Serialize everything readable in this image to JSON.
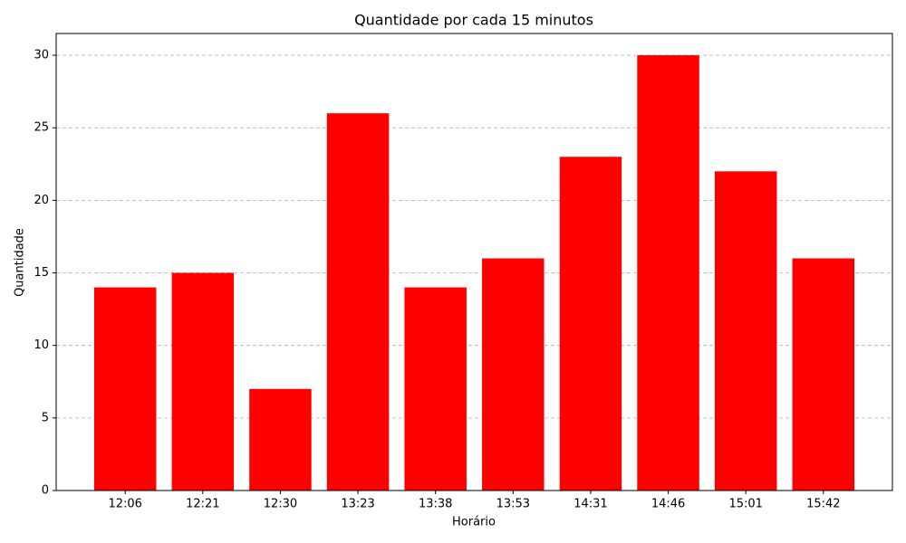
{
  "chart_data": {
    "type": "bar",
    "title": "Quantidade por cada 15 minutos",
    "x_label": "Horário",
    "y_label": "Quantidade",
    "categories": [
      "12:06",
      "12:21",
      "12:30",
      "13:23",
      "13:38",
      "13:53",
      "14:31",
      "14:46",
      "15:01",
      "15:42"
    ],
    "values": [
      14,
      15,
      7,
      26,
      14,
      16,
      23,
      30,
      22,
      16
    ],
    "color": "#ff0000",
    "ylim": [
      0,
      31.5
    ],
    "yticks": [
      0,
      5,
      10,
      15,
      20,
      25,
      30
    ],
    "grid": true
  }
}
